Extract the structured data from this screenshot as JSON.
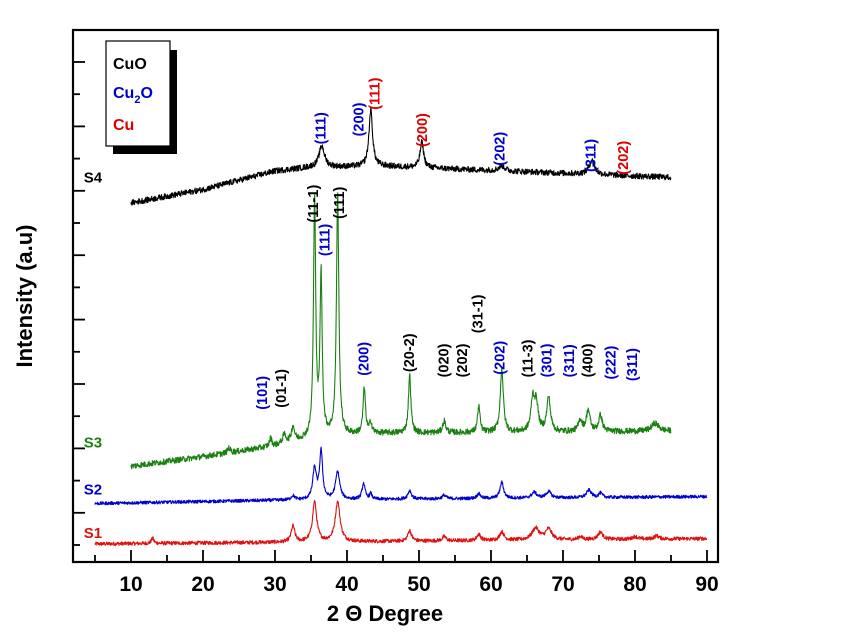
{
  "chart_data": {
    "type": "line",
    "title": "",
    "xlabel": "2 Θ Degree",
    "ylabel": "Intensity (a.u)",
    "xlim": [
      2.5,
      91.5
    ],
    "ylim": [
      0,
      100
    ],
    "grid": false,
    "x_ticks": [
      10,
      20,
      30,
      40,
      50,
      60,
      70,
      80,
      90
    ],
    "x_tick_labels": [
      "10",
      "20",
      "30",
      "40",
      "50",
      "60",
      "70",
      "80",
      "90"
    ],
    "y_ticks_labeled": false,
    "legend": {
      "placement": "top-left",
      "entries": [
        {
          "label": "CuO",
          "color": "#000000"
        },
        {
          "label": "Cu",
          "sub": "2",
          "label_after": "O",
          "color": "#0000cc"
        },
        {
          "label": "Cu",
          "color": "#dd0000"
        }
      ]
    },
    "series": [
      {
        "name": "S1",
        "color": "#dd1111",
        "x_range": [
          5,
          90
        ],
        "baseline": [
          [
            5,
            3.4
          ],
          [
            30,
            3.7
          ],
          [
            90,
            4.4
          ]
        ],
        "noise": 0.35,
        "peaks": [
          [
            13,
            1.0,
            0.2
          ],
          [
            32.5,
            3.0,
            0.3
          ],
          [
            35.5,
            7.5,
            0.35
          ],
          [
            38.7,
            7.5,
            0.4
          ],
          [
            48.7,
            2.0,
            0.3
          ],
          [
            53.5,
            0.8,
            0.3
          ],
          [
            58.3,
            1.2,
            0.3
          ],
          [
            61.5,
            1.6,
            0.35
          ],
          [
            66.2,
            2.2,
            0.6
          ],
          [
            68.0,
            2.0,
            0.5
          ],
          [
            72.4,
            0.6,
            0.3
          ],
          [
            75.2,
            1.4,
            0.4
          ],
          [
            80,
            0.5,
            0.4
          ],
          [
            83,
            0.6,
            0.4
          ]
        ]
      },
      {
        "name": "S2",
        "color": "#0000cc",
        "x_range": [
          5,
          90
        ],
        "baseline": [
          [
            5,
            11.0
          ],
          [
            30,
            11.6
          ],
          [
            90,
            12.3
          ]
        ],
        "noise": 0.3,
        "peaks": [
          [
            32.5,
            0.8,
            0.3
          ],
          [
            35.5,
            5.8,
            0.3
          ],
          [
            36.4,
            9.0,
            0.25
          ],
          [
            38.7,
            5.2,
            0.35
          ],
          [
            42.3,
            3.0,
            0.25
          ],
          [
            43.3,
            1.0,
            0.2
          ],
          [
            48.7,
            1.6,
            0.3
          ],
          [
            53.5,
            0.7,
            0.3
          ],
          [
            58.3,
            0.9,
            0.3
          ],
          [
            61.5,
            3.0,
            0.3
          ],
          [
            66.0,
            1.1,
            0.4
          ],
          [
            68.0,
            1.2,
            0.4
          ],
          [
            73.6,
            1.4,
            0.4
          ],
          [
            75.2,
            0.8,
            0.3
          ]
        ]
      },
      {
        "name": "S3",
        "color": "#1a8010",
        "x_range": [
          10,
          85
        ],
        "baseline": [
          [
            10,
            18.0
          ],
          [
            20,
            19.8
          ],
          [
            30,
            21.8
          ],
          [
            36,
            23.6
          ],
          [
            45,
            24.2
          ],
          [
            85,
            24.6
          ]
        ],
        "noise": 0.55,
        "peaks": [
          [
            23.6,
            1.0,
            0.2
          ],
          [
            29.4,
            1.5,
            0.2
          ],
          [
            31.3,
            1.6,
            0.3
          ],
          [
            32.5,
            2.8,
            0.25
          ],
          [
            35.5,
            45.0,
            0.18
          ],
          [
            36.4,
            30.0,
            0.18
          ],
          [
            38.7,
            45.0,
            0.2
          ],
          [
            42.4,
            8.5,
            0.2
          ],
          [
            43.3,
            2.0,
            0.2
          ],
          [
            48.7,
            11.0,
            0.2
          ],
          [
            53.5,
            2.2,
            0.25
          ],
          [
            58.3,
            5.0,
            0.2
          ],
          [
            61.5,
            12.0,
            0.25
          ],
          [
            65.8,
            6.0,
            0.3
          ],
          [
            66.3,
            5.0,
            0.3
          ],
          [
            68.0,
            6.5,
            0.3
          ],
          [
            72.4,
            2.2,
            0.3
          ],
          [
            73.5,
            4.0,
            0.3
          ],
          [
            75.2,
            3.0,
            0.3
          ],
          [
            82.8,
            1.5,
            0.6
          ]
        ]
      },
      {
        "name": "S4",
        "color": "#000000",
        "x_range": [
          10,
          85
        ],
        "baseline": [
          [
            10,
            67.5
          ],
          [
            20,
            70.0
          ],
          [
            30,
            73.5
          ],
          [
            35,
            74.2
          ],
          [
            45,
            74.4
          ],
          [
            60,
            73.6
          ],
          [
            85,
            72.3
          ]
        ],
        "noise": 0.55,
        "peaks": [
          [
            36.5,
            4.0,
            0.45
          ],
          [
            43.3,
            10.6,
            0.3
          ],
          [
            50.4,
            4.8,
            0.3
          ],
          [
            61.5,
            1.0,
            0.5
          ],
          [
            74.0,
            2.6,
            0.45
          ]
        ]
      }
    ],
    "series_labels": [
      {
        "text": "S1",
        "color": "#dd1111",
        "x": 6.5,
        "y": 4.5
      },
      {
        "text": "S2",
        "color": "#0000cc",
        "x": 6.5,
        "y": 12.7
      },
      {
        "text": "S3",
        "color": "#1a8010",
        "x": 6.5,
        "y": 21.5
      },
      {
        "text": "S4",
        "color": "#000000",
        "x": 6.5,
        "y": 71.3
      }
    ],
    "annotations": [
      {
        "text": "(111)",
        "color": "#0000cc",
        "x": 36.3,
        "y": 78.5
      },
      {
        "text": "(200)",
        "color": "#0000cc",
        "x": 41.6,
        "y": 80.0
      },
      {
        "text": "(111)",
        "color": "#dd0000",
        "x": 43.8,
        "y": 85.0
      },
      {
        "text": "(200)",
        "color": "#dd0000",
        "x": 50.4,
        "y": 78.0
      },
      {
        "text": "(202)",
        "color": "#0000cc",
        "x": 61.2,
        "y": 74.5
      },
      {
        "text": "(311)",
        "color": "#0000cc",
        "x": 73.8,
        "y": 73.3
      },
      {
        "text": "(202)",
        "color": "#dd0000",
        "x": 78.3,
        "y": 72.8
      },
      {
        "text": "(11-1)",
        "color": "#000000",
        "x": 35.3,
        "y": 63.8
      },
      {
        "text": "(111)",
        "color": "#0000cc",
        "x": 36.9,
        "y": 57.5
      },
      {
        "text": "(111)",
        "color": "#000000",
        "x": 38.9,
        "y": 64.5
      },
      {
        "text": "(101)",
        "color": "#0000cc",
        "x": 28.2,
        "y": 28.6
      },
      {
        "text": "(01-1)",
        "color": "#000000",
        "x": 30.8,
        "y": 29.0
      },
      {
        "text": "(200)",
        "color": "#0000cc",
        "x": 42.3,
        "y": 35.0
      },
      {
        "text": "(20-2)",
        "color": "#000000",
        "x": 48.6,
        "y": 35.7
      },
      {
        "text": "(020)",
        "color": "#000000",
        "x": 53.4,
        "y": 34.7
      },
      {
        "text": "(202)",
        "color": "#000000",
        "x": 56.0,
        "y": 34.7
      },
      {
        "text": "(31-1)",
        "color": "#000000",
        "x": 58.1,
        "y": 43.0
      },
      {
        "text": "(202)",
        "color": "#0000cc",
        "x": 61.2,
        "y": 35.2
      },
      {
        "text": "(11-3)",
        "color": "#000000",
        "x": 65.1,
        "y": 34.7
      },
      {
        "text": "(301)",
        "color": "#0000cc",
        "x": 67.7,
        "y": 34.7
      },
      {
        "text": "(311)",
        "color": "#0000cc",
        "x": 70.8,
        "y": 34.7
      },
      {
        "text": "(400)",
        "color": "#000000",
        "x": 73.4,
        "y": 34.7
      },
      {
        "text": "(222)",
        "color": "#0000cc",
        "x": 76.6,
        "y": 34.3
      },
      {
        "text": "(311)",
        "color": "#0000cc",
        "x": 79.6,
        "y": 34.0
      }
    ]
  }
}
